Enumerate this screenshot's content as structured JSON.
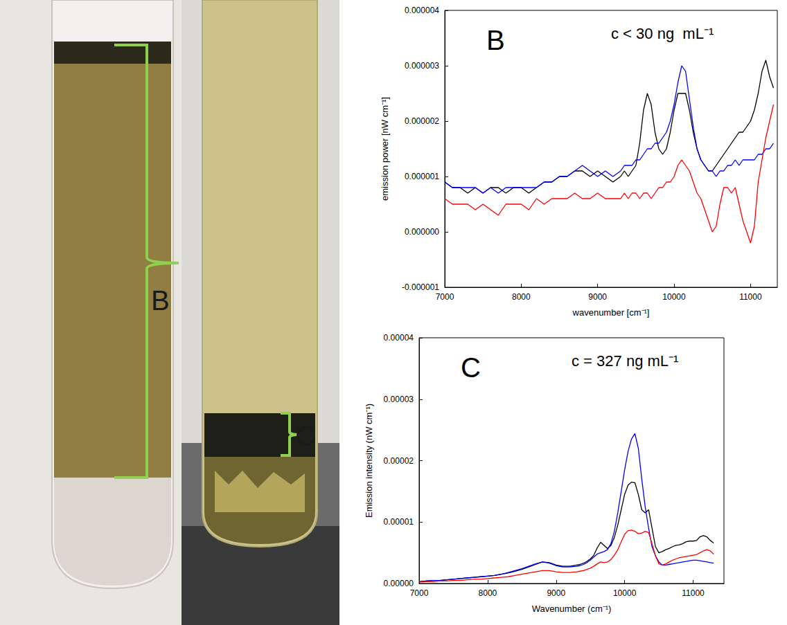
{
  "image": {
    "labels": [
      "B",
      "C"
    ]
  },
  "chart_data": [
    {
      "type": "line",
      "title": "B",
      "annotations": [
        "c < 30 ng  mL⁻¹"
      ],
      "xlabel": "wavenumber [cm⁻¹]",
      "ylabel": "emission power [nW cm⁻¹]",
      "grid": false,
      "xlim": [
        7000,
        11350
      ],
      "xticks": [
        7000,
        8000,
        9000,
        10000,
        11000
      ],
      "ylim": [
        -1e-06,
        4e-06
      ],
      "yticks": [
        {
          "value": -1e-06,
          "label": "-0.000001"
        },
        {
          "value": 0,
          "label": "0.000000"
        },
        {
          "value": 1e-06,
          "label": "0.000001"
        },
        {
          "value": 2e-06,
          "label": "0.000002"
        },
        {
          "value": 3e-06,
          "label": "0.000003"
        },
        {
          "value": 4e-06,
          "label": "0.000004"
        }
      ],
      "x": [
        7000,
        7100,
        7200,
        7300,
        7400,
        7500,
        7600,
        7700,
        7800,
        7900,
        8000,
        8100,
        8200,
        8300,
        8400,
        8500,
        8600,
        8700,
        8800,
        8900,
        9000,
        9100,
        9200,
        9300,
        9350,
        9400,
        9450,
        9500,
        9550,
        9600,
        9650,
        9700,
        9750,
        9800,
        9850,
        9900,
        9950,
        10000,
        10050,
        10100,
        10150,
        10200,
        10250,
        10300,
        10350,
        10400,
        10450,
        10500,
        10550,
        10600,
        10650,
        10700,
        10750,
        10800,
        10850,
        10900,
        10950,
        11000,
        11050,
        11100,
        11150,
        11200,
        11250,
        11300
      ],
      "series": [
        {
          "color": "#000000",
          "values": [
            9e-07,
            8e-07,
            8e-07,
            7e-07,
            8e-07,
            7e-07,
            8e-07,
            8e-07,
            7e-07,
            8e-07,
            8e-07,
            7e-07,
            8e-07,
            9e-07,
            9e-07,
            1e-06,
            1e-06,
            1.1e-06,
            1.1e-06,
            1e-06,
            1.1e-06,
            1e-06,
            9e-07,
            1e-06,
            1.1e-06,
            1e-06,
            1.1e-06,
            1.2e-06,
            1.6e-06,
            2.2e-06,
            2.5e-06,
            2.3e-06,
            1.8e-06,
            1.5e-06,
            1.4e-06,
            1.5e-06,
            1.8e-06,
            2.2e-06,
            2.5e-06,
            2.5e-06,
            2.5e-06,
            2.2e-06,
            1.8e-06,
            1.5e-06,
            1.3e-06,
            1.2e-06,
            1.1e-06,
            1.1e-06,
            1.2e-06,
            1.3e-06,
            1.4e-06,
            1.5e-06,
            1.6e-06,
            1.7e-06,
            1.8e-06,
            1.8e-06,
            1.9e-06,
            2e-06,
            2.2e-06,
            2.5e-06,
            2.9e-06,
            3.1e-06,
            2.8e-06,
            2.6e-06
          ]
        },
        {
          "color": "#0000ff",
          "values": [
            9e-07,
            8e-07,
            8e-07,
            8e-07,
            8e-07,
            7e-07,
            8e-07,
            7e-07,
            8e-07,
            8e-07,
            8e-07,
            8e-07,
            8e-07,
            9e-07,
            9e-07,
            1e-06,
            1e-06,
            1.1e-06,
            1.2e-06,
            1.1e-06,
            1e-06,
            1.1e-06,
            1e-06,
            1.1e-06,
            1.2e-06,
            1.2e-06,
            1.2e-06,
            1.3e-06,
            1.3e-06,
            1.4e-06,
            1.5e-06,
            1.5e-06,
            1.6e-06,
            1.6e-06,
            1.7e-06,
            1.8e-06,
            2e-06,
            2.3e-06,
            2.7e-06,
            3e-06,
            2.9e-06,
            2.4e-06,
            1.9e-06,
            1.5e-06,
            1.3e-06,
            1.2e-06,
            1.1e-06,
            1.1e-06,
            1e-06,
            1.1e-06,
            1.1e-06,
            1.2e-06,
            1.2e-06,
            1.3e-06,
            1.2e-06,
            1.3e-06,
            1.3e-06,
            1.3e-06,
            1.3e-06,
            1.4e-06,
            1.4e-06,
            1.5e-06,
            1.5e-06,
            1.6e-06
          ]
        },
        {
          "color": "#ff0000",
          "values": [
            6e-07,
            5e-07,
            5e-07,
            5e-07,
            4e-07,
            5e-07,
            4e-07,
            3e-07,
            5e-07,
            5e-07,
            5e-07,
            4e-07,
            6e-07,
            5e-07,
            6e-07,
            6e-07,
            6e-07,
            7e-07,
            6e-07,
            6e-07,
            7e-07,
            6e-07,
            6e-07,
            6e-07,
            7e-07,
            6e-07,
            7e-07,
            7e-07,
            6e-07,
            7e-07,
            7e-07,
            6e-07,
            7e-07,
            8e-07,
            8e-07,
            9e-07,
            9e-07,
            1e-06,
            1.2e-06,
            1.3e-06,
            1.2e-06,
            1.1e-06,
            9e-07,
            7e-07,
            6e-07,
            4e-07,
            2e-07,
            0.0,
            1e-07,
            5e-07,
            8e-07,
            8e-07,
            7e-07,
            8e-07,
            5e-07,
            2e-07,
            0.0,
            -2e-07,
            1e-07,
            9e-07,
            1.3e-06,
            1.7e-06,
            2e-06,
            2.3e-06
          ]
        }
      ]
    },
    {
      "type": "line",
      "title": "C",
      "annotations": [
        "c = 327 ng mL⁻¹"
      ],
      "xlabel": "Wavenumber (cm⁻¹)",
      "ylabel": "Emission intensity (nW cm⁻¹)",
      "grid": false,
      "xlim": [
        7000,
        11450
      ],
      "xticks": [
        7000,
        8000,
        9000,
        10000,
        11000
      ],
      "ylim": [
        0,
        4e-05
      ],
      "yticks": [
        {
          "value": 0,
          "label": "0.00000"
        },
        {
          "value": 1e-05,
          "label": "0.00001"
        },
        {
          "value": 2e-05,
          "label": "0.00002"
        },
        {
          "value": 3e-05,
          "label": "0.00003"
        },
        {
          "value": 4e-05,
          "label": "0.00004"
        }
      ],
      "x": [
        7000,
        7100,
        7200,
        7300,
        7400,
        7500,
        7600,
        7700,
        7800,
        7900,
        8000,
        8100,
        8200,
        8300,
        8400,
        8500,
        8600,
        8700,
        8800,
        8900,
        9000,
        9100,
        9200,
        9300,
        9350,
        9400,
        9450,
        9500,
        9550,
        9600,
        9650,
        9700,
        9750,
        9800,
        9850,
        9900,
        9950,
        10000,
        10050,
        10100,
        10150,
        10200,
        10250,
        10300,
        10350,
        10400,
        10450,
        10500,
        10550,
        10600,
        10650,
        10700,
        10750,
        10800,
        10850,
        10900,
        10950,
        11000,
        11050,
        11100,
        11150,
        11200,
        11250,
        11300
      ],
      "series": [
        {
          "color": "#000000",
          "values": [
            3e-07,
            4e-07,
            5e-07,
            5e-07,
            6e-07,
            7e-07,
            8e-07,
            9e-07,
            1e-06,
            1.1e-06,
            1.2e-06,
            1.3e-06,
            1.5e-06,
            1.7e-06,
            2e-06,
            2.3e-06,
            2.7e-06,
            3.1e-06,
            3.5e-06,
            3.4e-06,
            3e-06,
            2.8e-06,
            2.8e-06,
            3e-06,
            3.1e-06,
            3.3e-06,
            3.6e-06,
            4e-06,
            4.6e-06,
            5.8e-06,
            6.7e-06,
            6.2e-06,
            5.7e-06,
            6.2e-06,
            7.5e-06,
            9.5e-06,
            1.2e-05,
            1.45e-05,
            1.6e-05,
            1.65e-05,
            1.64e-05,
            1.45e-05,
            1.2e-05,
            1.15e-05,
            1.2e-05,
            9e-06,
            6e-06,
            5e-06,
            5.2e-06,
            5.5e-06,
            5.7e-06,
            6e-06,
            6.2e-06,
            6.3e-06,
            6.5e-06,
            6.8e-06,
            6.9e-06,
            6.9e-06,
            7e-06,
            7.6e-06,
            7.8e-06,
            7.6e-06,
            7e-06,
            6.6e-06
          ]
        },
        {
          "color": "#0000ff",
          "values": [
            3e-07,
            4e-07,
            5e-07,
            5e-07,
            6e-07,
            7e-07,
            8e-07,
            9e-07,
            1e-06,
            1.1e-06,
            1.2e-06,
            1.3e-06,
            1.5e-06,
            1.8e-06,
            2.1e-06,
            2.4e-06,
            2.8e-06,
            3.2e-06,
            3.5e-06,
            3.3e-06,
            2.9e-06,
            2.7e-06,
            2.7e-06,
            2.8e-06,
            2.9e-06,
            3.1e-06,
            3.4e-06,
            3.8e-06,
            4.3e-06,
            4.8e-06,
            5e-06,
            5.2e-06,
            5.5e-06,
            6.5e-06,
            8.5e-06,
            1.15e-05,
            1.5e-05,
            1.85e-05,
            2.15e-05,
            2.35e-05,
            2.44e-05,
            2.2e-05,
            1.7e-05,
            1.25e-05,
            9e-06,
            6e-06,
            4.5e-06,
            3.5e-06,
            3e-06,
            3e-06,
            3.1e-06,
            3.2e-06,
            3.3e-06,
            3.4e-06,
            3.5e-06,
            3.6e-06,
            3.7e-06,
            3.8e-06,
            3.8e-06,
            3.7e-06,
            3.6e-06,
            3.5e-06,
            3.4e-06,
            3.3e-06
          ]
        },
        {
          "color": "#ff0000",
          "values": [
            2e-07,
            3e-07,
            3e-07,
            4e-07,
            4e-07,
            5e-07,
            5e-07,
            6e-07,
            7e-07,
            7e-07,
            8e-07,
            9e-07,
            1e-06,
            1.1e-06,
            1.3e-06,
            1.5e-06,
            1.7e-06,
            1.9e-06,
            2.1e-06,
            2.1e-06,
            1.9e-06,
            1.8e-06,
            1.8e-06,
            1.9e-06,
            2e-06,
            2.1e-06,
            2.3e-06,
            2.5e-06,
            2.8e-06,
            3.2e-06,
            3.5e-06,
            3.4e-06,
            3.5e-06,
            3.9e-06,
            4.6e-06,
            5.5e-06,
            6.8e-06,
            8e-06,
            8.6e-06,
            8.7e-06,
            8.5e-06,
            8.1e-06,
            8.2e-06,
            8.5e-06,
            8.3e-06,
            6.5e-06,
            4.5e-06,
            3.2e-06,
            3e-06,
            3.2e-06,
            3.5e-06,
            3.8e-06,
            4e-06,
            4.2e-06,
            4.3e-06,
            4.4e-06,
            4.5e-06,
            4.6e-06,
            4.7e-06,
            5e-06,
            5.3e-06,
            5.5e-06,
            5.3e-06,
            4.8e-06
          ]
        }
      ]
    }
  ]
}
